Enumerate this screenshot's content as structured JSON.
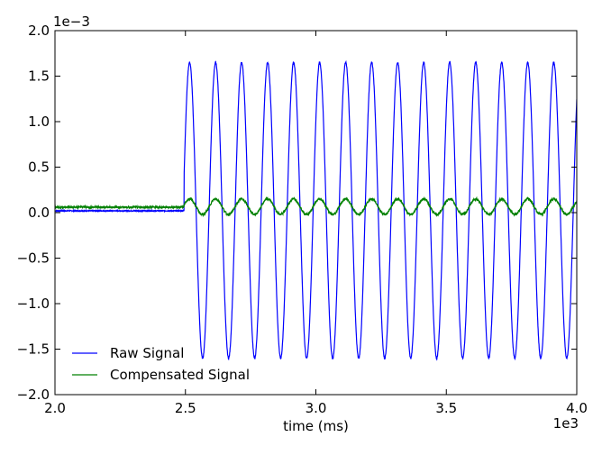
{
  "chart_data": {
    "type": "line",
    "xlabel": "time (ms)",
    "ylabel": "",
    "x_offset_text": "1e3",
    "y_offset_text": "1e−3",
    "xlim": [
      2.0,
      4.0
    ],
    "ylim": [
      -2.0,
      2.0
    ],
    "x_ticks": [
      "2.0",
      "2.5",
      "3.0",
      "3.5",
      "4.0"
    ],
    "y_ticks": [
      "2.0",
      "1.5",
      "1.0",
      "0.5",
      "0.0",
      "−0.5",
      "−1.0",
      "−1.5",
      "−2.0"
    ],
    "grid": false,
    "legend_position": "lower-left",
    "series": [
      {
        "name": "Raw Signal",
        "color": "#0000ff",
        "baseline_before_onset": 0.02,
        "onset": 2.495,
        "peak": 1.65,
        "trough": -1.6,
        "period": 0.0997,
        "first_peak": 2.516
      },
      {
        "name": "Compensated Signal",
        "color": "#008000",
        "baseline_before_onset": 0.06,
        "onset": 2.495,
        "peak": 0.15,
        "trough": -0.02,
        "period": 0.0997,
        "first_peak": 2.516
      }
    ]
  }
}
